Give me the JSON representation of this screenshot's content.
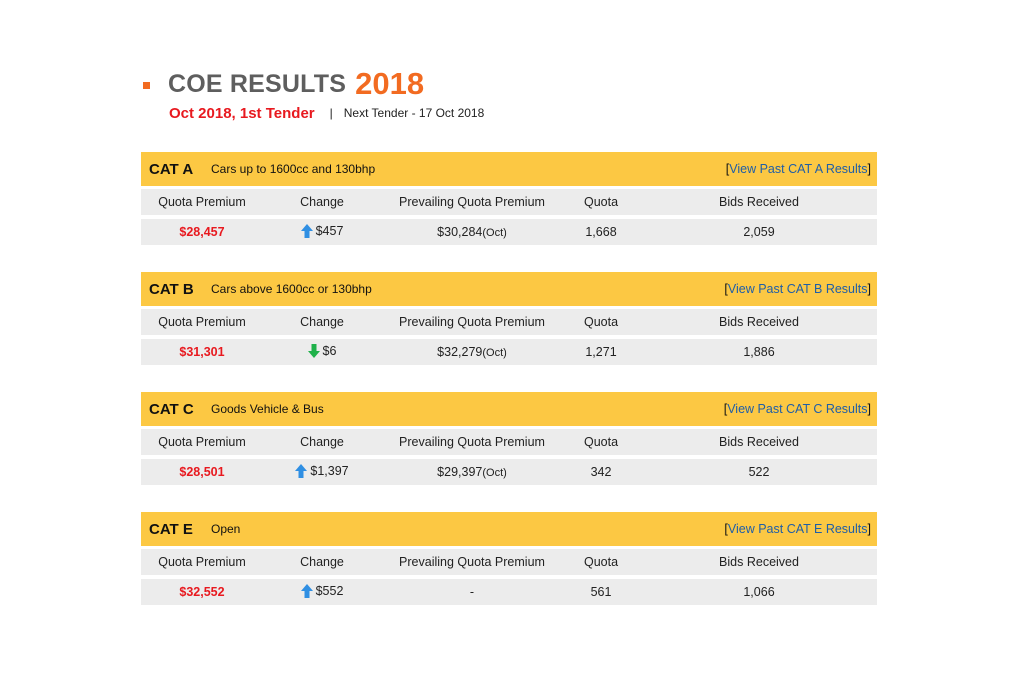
{
  "header": {
    "title": "COE RESULTS",
    "year": "2018",
    "tender": "Oct 2018, 1st Tender",
    "separator": "|",
    "next_tender": "Next Tender - 17 Oct 2018"
  },
  "columns": {
    "quota_premium": "Quota Premium",
    "change": "Change",
    "prevailing": "Prevailing Quota Premium",
    "quota": "Quota",
    "bids": "Bids Received"
  },
  "colors": {
    "accent": "#f26b21",
    "header_bar": "#fcc843",
    "premium_red": "#e8191f",
    "up_arrow": "#2f8fe3",
    "down_arrow": "#1fb14a"
  },
  "categories": [
    {
      "code": "CAT A",
      "desc": "Cars up to 1600cc and 130bhp",
      "link": "View Past CAT A Results",
      "premium": "$28,457",
      "direction": "up",
      "change": "$457",
      "prevailing": "$30,284",
      "prevailing_suffix": "(Oct)",
      "quota": "1,668",
      "bids": "2,059"
    },
    {
      "code": "CAT B",
      "desc": "Cars above 1600cc or 130bhp",
      "link": "View Past CAT B Results",
      "premium": "$31,301",
      "direction": "down",
      "change": "$6",
      "prevailing": "$32,279",
      "prevailing_suffix": "(Oct)",
      "quota": "1,271",
      "bids": "1,886"
    },
    {
      "code": "CAT C",
      "desc": "Goods Vehicle & Bus",
      "link": "View Past CAT C Results",
      "premium": "$28,501",
      "direction": "up",
      "change": "$1,397",
      "prevailing": "$29,397",
      "prevailing_suffix": "(Oct)",
      "quota": "342",
      "bids": "522"
    },
    {
      "code": "CAT E",
      "desc": "Open",
      "link": "View Past CAT E Results",
      "premium": "$32,552",
      "direction": "up",
      "change": "$552",
      "prevailing": "-",
      "prevailing_suffix": "",
      "quota": "561",
      "bids": "1,066"
    }
  ]
}
